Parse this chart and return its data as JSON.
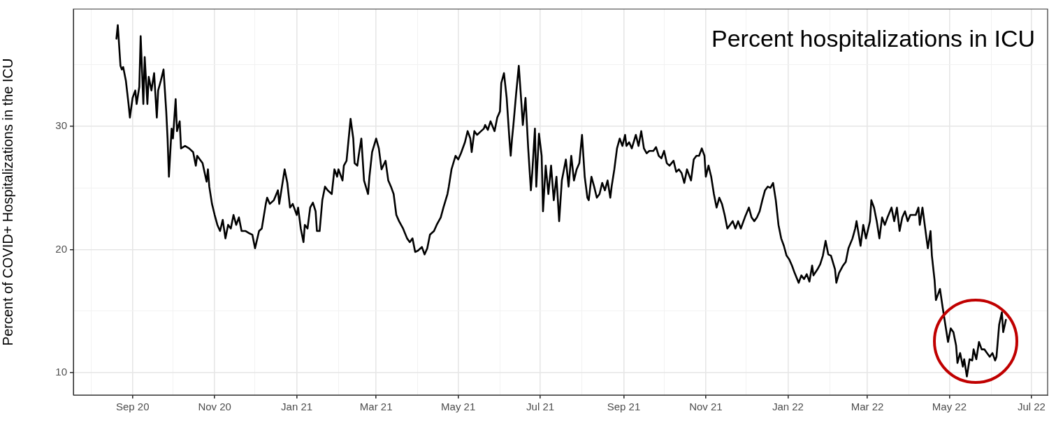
{
  "chart_data": {
    "type": "line",
    "title": "Percent hospitalizations in ICU",
    "ylabel": "Percent of COVID+ Hospitalizations in the ICU",
    "x": [
      "2020-08-20",
      "2020-08-21",
      "2020-08-23",
      "2020-08-24",
      "2020-08-25",
      "2020-08-27",
      "2020-08-29",
      "2020-08-30",
      "2020-09-01",
      "2020-09-03",
      "2020-09-04",
      "2020-09-06",
      "2020-09-07",
      "2020-09-09",
      "2020-09-10",
      "2020-09-12",
      "2020-09-13",
      "2020-09-15",
      "2020-09-17",
      "2020-09-19",
      "2020-09-20",
      "2020-09-22",
      "2020-09-24",
      "2020-09-26",
      "2020-09-27",
      "2020-09-28",
      "2020-09-30",
      "2020-10-01",
      "2020-10-03",
      "2020-10-04",
      "2020-10-06",
      "2020-10-07",
      "2020-10-10",
      "2020-10-13",
      "2020-10-16",
      "2020-10-18",
      "2020-10-19",
      "2020-10-21",
      "2020-10-23",
      "2020-10-26",
      "2020-10-27",
      "2020-10-28",
      "2020-10-30",
      "2020-11-01",
      "2020-11-03",
      "2020-11-05",
      "2020-11-07",
      "2020-11-09",
      "2020-11-11",
      "2020-11-13",
      "2020-11-15",
      "2020-11-17",
      "2020-11-19",
      "2020-11-21",
      "2020-11-24",
      "2020-11-27",
      "2020-11-29",
      "2020-12-01",
      "2020-12-04",
      "2020-12-06",
      "2020-12-09",
      "2020-12-10",
      "2020-12-12",
      "2020-12-15",
      "2020-12-18",
      "2020-12-19",
      "2020-12-21",
      "2020-12-23",
      "2020-12-25",
      "2020-12-27",
      "2020-12-29",
      "2021-01-01",
      "2021-01-02",
      "2021-01-04",
      "2021-01-06",
      "2021-01-07",
      "2021-01-09",
      "2021-01-11",
      "2021-01-13",
      "2021-01-15",
      "2021-01-16",
      "2021-01-18",
      "2021-01-20",
      "2021-01-22",
      "2021-01-24",
      "2021-01-27",
      "2021-01-29",
      "2021-01-31",
      "2021-02-01",
      "2021-02-04",
      "2021-02-05",
      "2021-02-07",
      "2021-02-10",
      "2021-02-12",
      "2021-02-13",
      "2021-02-15",
      "2021-02-16",
      "2021-02-18",
      "2021-02-20",
      "2021-02-23",
      "2021-02-24",
      "2021-02-26",
      "2021-03-01",
      "2021-03-03",
      "2021-03-05",
      "2021-03-08",
      "2021-03-10",
      "2021-03-12",
      "2021-03-14",
      "2021-03-16",
      "2021-03-18",
      "2021-03-21",
      "2021-03-24",
      "2021-03-26",
      "2021-03-28",
      "2021-03-30",
      "2021-04-01",
      "2021-04-04",
      "2021-04-06",
      "2021-04-08",
      "2021-04-10",
      "2021-04-13",
      "2021-04-15",
      "2021-04-18",
      "2021-04-20",
      "2021-04-23",
      "2021-04-24",
      "2021-04-26",
      "2021-04-29",
      "2021-05-01",
      "2021-05-03",
      "2021-05-06",
      "2021-05-08",
      "2021-05-10",
      "2021-05-11",
      "2021-05-13",
      "2021-05-15",
      "2021-05-18",
      "2021-05-20",
      "2021-05-21",
      "2021-05-23",
      "2021-05-25",
      "2021-05-28",
      "2021-05-30",
      "2021-06-01",
      "2021-06-02",
      "2021-06-04",
      "2021-06-06",
      "2021-06-08",
      "2021-06-09",
      "2021-06-10",
      "2021-06-11",
      "2021-06-13",
      "2021-06-15",
      "2021-06-17",
      "2021-06-18",
      "2021-06-20",
      "2021-06-22",
      "2021-06-24",
      "2021-06-25",
      "2021-06-27",
      "2021-06-28",
      "2021-06-30",
      "2021-07-02",
      "2021-07-03",
      "2021-07-05",
      "2021-07-07",
      "2021-07-09",
      "2021-07-11",
      "2021-07-13",
      "2021-07-15",
      "2021-07-17",
      "2021-07-20",
      "2021-07-22",
      "2021-07-24",
      "2021-07-26",
      "2021-07-28",
      "2021-07-30",
      "2021-08-01",
      "2021-08-03",
      "2021-08-05",
      "2021-08-06",
      "2021-08-08",
      "2021-08-10",
      "2021-08-12",
      "2021-08-14",
      "2021-08-16",
      "2021-08-18",
      "2021-08-20",
      "2021-08-22",
      "2021-08-23",
      "2021-08-25",
      "2021-08-27",
      "2021-08-29",
      "2021-08-31",
      "2021-09-02",
      "2021-09-03",
      "2021-09-05",
      "2021-09-07",
      "2021-09-10",
      "2021-09-12",
      "2021-09-14",
      "2021-09-16",
      "2021-09-18",
      "2021-09-20",
      "2021-09-23",
      "2021-09-25",
      "2021-09-27",
      "2021-09-29",
      "2021-10-01",
      "2021-10-03",
      "2021-10-05",
      "2021-10-08",
      "2021-10-10",
      "2021-10-12",
      "2021-10-14",
      "2021-10-16",
      "2021-10-18",
      "2021-10-21",
      "2021-10-23",
      "2021-10-25",
      "2021-10-27",
      "2021-10-29",
      "2021-10-31",
      "2021-11-01",
      "2021-11-03",
      "2021-11-05",
      "2021-11-07",
      "2021-11-09",
      "2021-11-11",
      "2021-11-13",
      "2021-11-15",
      "2021-11-17",
      "2021-11-19",
      "2021-11-21",
      "2021-11-23",
      "2021-11-25",
      "2021-11-27",
      "2021-11-30",
      "2021-12-03",
      "2021-12-05",
      "2021-12-07",
      "2021-12-09",
      "2021-12-11",
      "2021-12-13",
      "2021-12-15",
      "2021-12-17",
      "2021-12-19",
      "2021-12-21",
      "2021-12-23",
      "2021-12-25",
      "2021-12-27",
      "2021-12-29",
      "2021-12-31",
      "2022-01-02",
      "2022-01-04",
      "2022-01-06",
      "2022-01-09",
      "2022-01-11",
      "2022-01-13",
      "2022-01-15",
      "2022-01-17",
      "2022-01-19",
      "2022-01-20",
      "2022-01-23",
      "2022-01-25",
      "2022-01-27",
      "2022-01-29",
      "2022-01-31",
      "2022-02-02",
      "2022-02-05",
      "2022-02-06",
      "2022-02-08",
      "2022-02-11",
      "2022-02-13",
      "2022-02-15",
      "2022-02-18",
      "2022-02-20",
      "2022-02-21",
      "2022-02-24",
      "2022-02-26",
      "2022-02-28",
      "2022-03-03",
      "2022-03-04",
      "2022-03-06",
      "2022-03-08",
      "2022-03-10",
      "2022-03-12",
      "2022-03-14",
      "2022-03-16",
      "2022-03-19",
      "2022-03-21",
      "2022-03-23",
      "2022-03-25",
      "2022-03-27",
      "2022-03-29",
      "2022-03-31",
      "2022-04-02",
      "2022-04-04",
      "2022-04-06",
      "2022-04-08",
      "2022-04-09",
      "2022-04-11",
      "2022-04-14",
      "2022-04-15",
      "2022-04-17",
      "2022-04-18",
      "2022-04-20",
      "2022-04-21",
      "2022-04-23",
      "2022-04-24",
      "2022-04-26",
      "2022-04-28",
      "2022-04-30",
      "2022-05-02",
      "2022-05-04",
      "2022-05-06",
      "2022-05-07",
      "2022-05-09",
      "2022-05-11",
      "2022-05-12",
      "2022-05-14",
      "2022-05-16",
      "2022-05-18",
      "2022-05-19",
      "2022-05-21",
      "2022-05-23",
      "2022-05-25",
      "2022-05-27",
      "2022-05-29",
      "2022-05-31",
      "2022-06-02",
      "2022-06-04",
      "2022-06-05",
      "2022-06-07",
      "2022-06-09",
      "2022-06-10",
      "2022-06-12"
    ],
    "series": [
      {
        "color": "#000000",
        "values": [
          37.1,
          38.2,
          34.9,
          34.6,
          34.8,
          33.7,
          31.8,
          30.7,
          32.3,
          32.9,
          31.8,
          33.2,
          37.3,
          31.8,
          35.6,
          31.8,
          34.0,
          32.9,
          34.3,
          30.7,
          32.9,
          33.7,
          34.6,
          31.2,
          29.0,
          25.9,
          29.8,
          29.0,
          32.2,
          29.6,
          30.4,
          28.2,
          28.4,
          28.2,
          27.9,
          26.8,
          27.6,
          27.3,
          27.0,
          25.5,
          26.5,
          25.1,
          23.7,
          22.8,
          22.0,
          21.5,
          22.4,
          20.9,
          22.0,
          21.7,
          22.8,
          22.0,
          22.6,
          21.5,
          21.5,
          21.3,
          21.2,
          20.1,
          21.5,
          21.7,
          23.7,
          24.2,
          23.7,
          24.0,
          24.8,
          23.7,
          25.1,
          26.5,
          25.4,
          23.4,
          23.7,
          22.8,
          23.4,
          21.7,
          20.6,
          22.0,
          21.7,
          23.4,
          23.8,
          23.1,
          21.5,
          21.5,
          24.0,
          25.1,
          24.8,
          24.5,
          26.5,
          25.9,
          26.5,
          25.6,
          26.8,
          27.2,
          30.6,
          29.0,
          27.0,
          26.8,
          27.6,
          29.0,
          25.6,
          24.5,
          25.9,
          27.9,
          29.0,
          28.2,
          26.5,
          27.2,
          25.6,
          25.1,
          24.5,
          22.8,
          22.3,
          21.7,
          20.9,
          20.6,
          20.9,
          19.8,
          19.9,
          20.2,
          19.6,
          20.1,
          21.2,
          21.5,
          22.0,
          22.6,
          23.4,
          24.5,
          25.1,
          26.5,
          27.6,
          27.3,
          27.8,
          28.7,
          29.6,
          29.0,
          27.9,
          29.6,
          29.3,
          29.6,
          29.8,
          30.1,
          29.7,
          30.4,
          29.6,
          30.7,
          31.2,
          33.5,
          34.3,
          32.3,
          29.0,
          27.6,
          29.0,
          30.1,
          32.6,
          34.9,
          31.8,
          30.1,
          32.3,
          28.2,
          24.8,
          26.2,
          29.8,
          25.1,
          29.4,
          27.6,
          23.1,
          26.8,
          24.5,
          26.8,
          24.0,
          25.9,
          22.3,
          25.6,
          27.3,
          25.1,
          27.6,
          25.6,
          26.5,
          27.0,
          29.3,
          25.9,
          24.2,
          24.0,
          25.9,
          25.1,
          24.2,
          24.5,
          25.4,
          24.8,
          25.6,
          24.2,
          25.1,
          26.5,
          28.2,
          29.0,
          28.4,
          29.3,
          28.4,
          28.7,
          28.2,
          29.3,
          28.4,
          29.6,
          28.2,
          27.8,
          28.0,
          28.0,
          28.3,
          27.6,
          27.4,
          28.0,
          27.0,
          26.8,
          27.2,
          26.3,
          26.5,
          26.2,
          25.4,
          26.5,
          25.6,
          27.3,
          27.6,
          27.6,
          28.2,
          27.6,
          25.9,
          26.8,
          25.9,
          24.5,
          23.4,
          24.2,
          23.7,
          22.8,
          21.7,
          22.0,
          22.3,
          21.7,
          22.3,
          21.7,
          22.6,
          23.4,
          22.6,
          22.3,
          22.6,
          23.1,
          24.0,
          24.8,
          25.1,
          25.0,
          25.4,
          24.0,
          22.0,
          20.9,
          20.3,
          19.5,
          19.2,
          18.7,
          18.1,
          17.3,
          17.9,
          17.6,
          18.0,
          17.4,
          18.7,
          17.9,
          18.4,
          18.8,
          19.5,
          20.7,
          19.6,
          19.5,
          18.4,
          17.3,
          18.1,
          18.7,
          19.0,
          20.1,
          20.9,
          21.7,
          22.3,
          20.3,
          22.0,
          20.9,
          22.3,
          24.0,
          23.4,
          22.3,
          20.9,
          22.6,
          22.0,
          22.6,
          23.4,
          22.3,
          23.4,
          21.5,
          22.6,
          23.1,
          22.3,
          22.8,
          22.8,
          22.8,
          23.4,
          22.0,
          23.4,
          20.9,
          20.1,
          21.5,
          19.5,
          17.5,
          15.9,
          16.5,
          16.8,
          15.3,
          13.9,
          12.5,
          13.6,
          13.3,
          12.2,
          10.8,
          11.6,
          10.5,
          11.1,
          9.7,
          11.1,
          11.0,
          11.9,
          11.1,
          12.5,
          11.9,
          11.9,
          11.6,
          11.3,
          11.6,
          11.0,
          11.3,
          13.9,
          14.9,
          13.3,
          14.3
        ]
      }
    ],
    "xlim": [
      "2020-07-19",
      "2022-07-13"
    ],
    "xticks": [
      {
        "value": "2020-08-01",
        "label": null
      },
      {
        "value": "2020-09-01",
        "label": "Sep 20"
      },
      {
        "value": "2020-10-01",
        "label": null
      },
      {
        "value": "2020-11-01",
        "label": "Nov 20"
      },
      {
        "value": "2020-12-01",
        "label": null
      },
      {
        "value": "2021-01-01",
        "label": "Jan 21"
      },
      {
        "value": "2021-02-01",
        "label": null
      },
      {
        "value": "2021-03-01",
        "label": "Mar 21"
      },
      {
        "value": "2021-04-01",
        "label": null
      },
      {
        "value": "2021-05-01",
        "label": "May 21"
      },
      {
        "value": "2021-06-01",
        "label": null
      },
      {
        "value": "2021-07-01",
        "label": "Jul 21"
      },
      {
        "value": "2021-08-01",
        "label": null
      },
      {
        "value": "2021-09-01",
        "label": "Sep 21"
      },
      {
        "value": "2021-10-01",
        "label": null
      },
      {
        "value": "2021-11-01",
        "label": "Nov 21"
      },
      {
        "value": "2021-12-01",
        "label": null
      },
      {
        "value": "2022-01-01",
        "label": "Jan 22"
      },
      {
        "value": "2022-02-01",
        "label": null
      },
      {
        "value": "2022-03-01",
        "label": "Mar 22"
      },
      {
        "value": "2022-04-01",
        "label": null
      },
      {
        "value": "2022-05-01",
        "label": "May 22"
      },
      {
        "value": "2022-06-01",
        "label": null
      },
      {
        "value": "2022-07-01",
        "label": "Jul 22"
      }
    ],
    "ylim": [
      8.2,
      39.5
    ],
    "yticks": [
      10,
      {
        "value": 15,
        "label": null
      },
      20,
      {
        "value": 25,
        "label": null
      },
      30,
      {
        "value": 35,
        "label": null
      }
    ],
    "grid": true,
    "legend": false,
    "marker": "none"
  }
}
